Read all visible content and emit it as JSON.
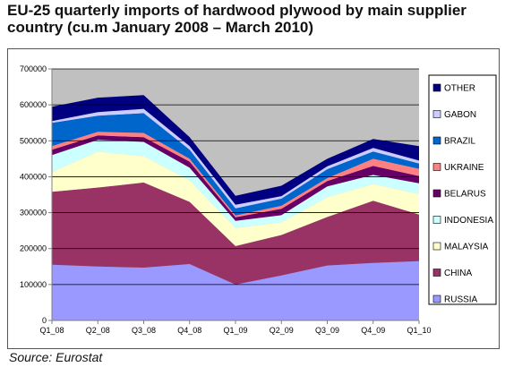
{
  "title": "EU-25 quarterly imports of hardwood plywood by main supplier country (cu.m January 2008 – March 2010)",
  "source": "Source: Eurostat",
  "chart_data": {
    "type": "area",
    "stacked": true,
    "title": "EU-25 quarterly imports of hardwood plywood by main supplier country (cu.m January 2008 – March 2010)",
    "xlabel": "",
    "ylabel": "",
    "ylim": [
      0,
      700000
    ],
    "yticks": [
      0,
      100000,
      200000,
      300000,
      400000,
      500000,
      600000,
      700000
    ],
    "ytick_labels": [
      "0",
      "100000",
      "200000",
      "300000",
      "400000",
      "500000",
      "600000",
      "700000"
    ],
    "categories": [
      "Q1_08",
      "Q2_08",
      "Q3_08",
      "Q4_08",
      "Q1_09",
      "Q2_09",
      "Q3_09",
      "Q4_09",
      "Q1_10"
    ],
    "grid": true,
    "plot_background": "#c0c0c0",
    "legend_position": "right",
    "series": [
      {
        "name": "RUSSIA",
        "color": "#9999ff",
        "values": [
          155000,
          150000,
          147000,
          157000,
          100000,
          125000,
          153000,
          160000,
          165000
        ]
      },
      {
        "name": "CHINA",
        "color": "#993366",
        "values": [
          203000,
          220000,
          237000,
          173000,
          107000,
          113000,
          135000,
          173000,
          130000
        ]
      },
      {
        "name": "MALAYSIA",
        "color": "#ffffcc",
        "values": [
          55000,
          100000,
          73000,
          60000,
          50000,
          35000,
          55000,
          47000,
          57000
        ]
      },
      {
        "name": "INDONESIA",
        "color": "#ccffff",
        "values": [
          47000,
          33000,
          40000,
          35000,
          20000,
          20000,
          30000,
          25000,
          30000
        ]
      },
      {
        "name": "BELARUS",
        "color": "#660066",
        "values": [
          15000,
          12000,
          13000,
          17000,
          10000,
          18000,
          15000,
          25000,
          20000
        ]
      },
      {
        "name": "UKRAINE",
        "color": "#ff8080",
        "values": [
          10000,
          10000,
          12000,
          8000,
          5000,
          8000,
          8000,
          20000,
          20000
        ]
      },
      {
        "name": "BRAZIL",
        "color": "#0066cc",
        "values": [
          65000,
          45000,
          55000,
          25000,
          20000,
          20000,
          25000,
          20000,
          15000
        ]
      },
      {
        "name": "GABON",
        "color": "#ccccff",
        "values": [
          5000,
          10000,
          12000,
          10000,
          10000,
          7000,
          8000,
          10000,
          8000
        ]
      },
      {
        "name": "OTHER",
        "color": "#000080",
        "values": [
          40000,
          40000,
          38000,
          25000,
          25000,
          29000,
          21000,
          25000,
          40000
        ]
      }
    ]
  }
}
